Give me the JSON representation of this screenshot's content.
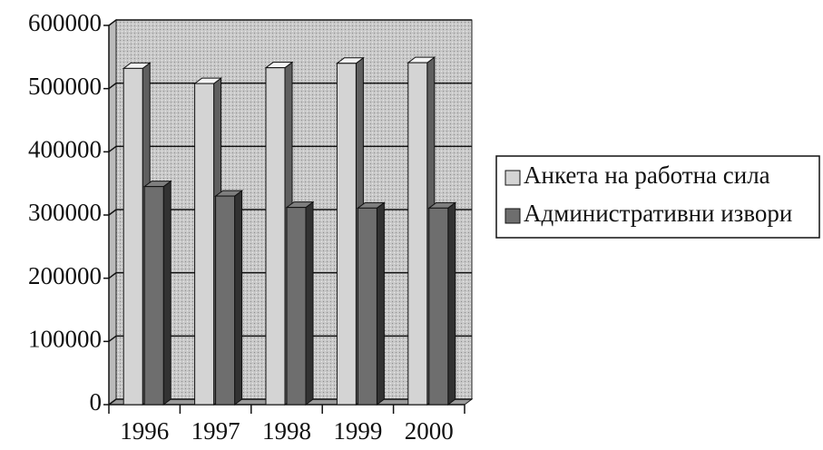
{
  "chart_data": {
    "type": "bar3d",
    "categories": [
      "1996",
      "1997",
      "1998",
      "1999",
      "2000"
    ],
    "series": [
      {
        "name": "Анкета на работна сила",
        "color": "#d4d4d4",
        "values": [
          532000,
          508000,
          533000,
          540000,
          541000
        ]
      },
      {
        "name": "Административни извори",
        "color": "#6e6e6e",
        "values": [
          345000,
          330000,
          312000,
          311000,
          311000
        ]
      }
    ],
    "ylim": [
      0,
      600000
    ],
    "yticks": [
      0,
      100000,
      200000,
      300000,
      400000,
      500000,
      600000
    ],
    "grid": true,
    "legend": "right"
  }
}
